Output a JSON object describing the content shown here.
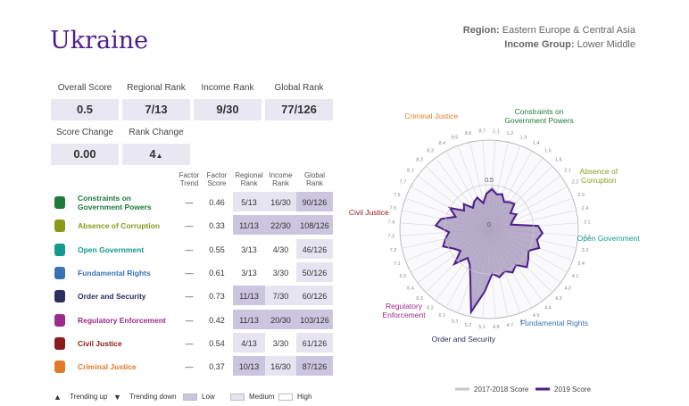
{
  "header": {
    "title": "Ukraine",
    "region_label": "Region:",
    "region": "Eastern Europe & Central Asia",
    "income_label": "Income Group:",
    "income": "Lower Middle"
  },
  "scores": [
    {
      "label": "Overall Score",
      "value": "0.5"
    },
    {
      "label": "Regional Rank",
      "value": "7/13"
    },
    {
      "label": "Income Rank",
      "value": "9/30"
    },
    {
      "label": "Global Rank",
      "value": "77/126"
    },
    {
      "label": "Score Change",
      "value": "0.00"
    },
    {
      "label": "Rank Change",
      "value": "4",
      "trend": "▲"
    }
  ],
  "table": {
    "columns": [
      "Factor Trend",
      "Factor Score",
      "Regional Rank",
      "Income Rank",
      "Global Rank"
    ],
    "rows": [
      {
        "name": "Constraints on Government Powers",
        "color": "#1e7b3a",
        "trend": "—",
        "score": "0.46",
        "ranks": [
          "5/13",
          "16/30",
          "90/126"
        ],
        "levels": [
          "medium",
          "medium",
          "low"
        ]
      },
      {
        "name": "Absence of Corruption",
        "color": "#8a9a1a",
        "trend": "—",
        "score": "0.33",
        "ranks": [
          "11/13",
          "22/30",
          "108/126"
        ],
        "levels": [
          "low",
          "low",
          "low"
        ]
      },
      {
        "name": "Open Government",
        "color": "#129a8c",
        "trend": "—",
        "score": "0.55",
        "ranks": [
          "3/13",
          "4/30",
          "46/126"
        ],
        "levels": [
          "high",
          "high",
          "medium"
        ]
      },
      {
        "name": "Fundamental Rights",
        "color": "#3a72b4",
        "trend": "—",
        "score": "0.61",
        "ranks": [
          "3/13",
          "3/30",
          "50/126"
        ],
        "levels": [
          "high",
          "high",
          "medium"
        ]
      },
      {
        "name": "Order and Security",
        "color": "#2c2f5e",
        "trend": "—",
        "score": "0.73",
        "ranks": [
          "11/13",
          "7/30",
          "60/126"
        ],
        "levels": [
          "low",
          "medium",
          "medium"
        ]
      },
      {
        "name": "Regulatory Enforcement",
        "color": "#9b2a8a",
        "trend": "—",
        "score": "0.42",
        "ranks": [
          "11/13",
          "20/30",
          "103/126"
        ],
        "levels": [
          "low",
          "low",
          "low"
        ]
      },
      {
        "name": "Civil Justice",
        "color": "#8b1a1a",
        "trend": "—",
        "score": "0.54",
        "ranks": [
          "4/13",
          "3/30",
          "61/126"
        ],
        "levels": [
          "medium",
          "high",
          "medium"
        ]
      },
      {
        "name": "Criminal Justice",
        "color": "#e07b2a",
        "trend": "—",
        "score": "0.37",
        "ranks": [
          "10/13",
          "16/30",
          "87/126"
        ],
        "levels": [
          "low",
          "medium",
          "low"
        ]
      }
    ]
  },
  "legend": {
    "up_symbol": "▲",
    "up": "Trending up",
    "down_symbol": "▼",
    "down": "Trending down",
    "low": "Low",
    "medium": "Medium",
    "high": "High"
  },
  "chart_data": {
    "type": "radar",
    "categories": [
      "1.1",
      "1.2",
      "1.3",
      "1.4",
      "1.5",
      "1.6",
      "2.1",
      "2.2",
      "2.3",
      "2.4",
      "3.1",
      "3.2",
      "3.3",
      "3.4",
      "4.1",
      "4.2",
      "4.3",
      "4.4",
      "4.5",
      "4.6",
      "4.7",
      "4.8",
      "5.1",
      "5.2",
      "5.3",
      "6.1",
      "6.2",
      "6.3",
      "6.4",
      "6.5",
      "7.1",
      "7.2",
      "7.3",
      "7.4",
      "7.5",
      "7.6",
      "7.7",
      "8.1",
      "8.2",
      "8.3",
      "8.4",
      "8.5",
      "8.6",
      "8.7"
    ],
    "rlim": [
      0,
      1
    ],
    "rticks": [
      0,
      0.5
    ],
    "series": [
      {
        "name": "2017-2018 Score",
        "color": "#c8c8cc",
        "values": [
          0.48,
          0.42,
          0.4,
          0.37,
          0.4,
          0.42,
          0.3,
          0.36,
          0.3,
          0.27,
          0.55,
          0.6,
          0.56,
          0.58,
          0.52,
          0.55,
          0.58,
          0.5,
          0.56,
          0.52,
          0.55,
          0.5,
          0.7,
          0.9,
          0.6,
          0.46,
          0.42,
          0.55,
          0.42,
          0.46,
          0.55,
          0.5,
          0.46,
          0.6,
          0.55,
          0.42,
          0.5,
          0.36,
          0.4,
          0.32,
          0.36,
          0.38,
          0.32,
          0.42
        ]
      },
      {
        "name": "2019 Score",
        "color": "#4b1f8c",
        "values": [
          0.45,
          0.4,
          0.42,
          0.35,
          0.38,
          0.4,
          0.3,
          0.35,
          0.28,
          0.25,
          0.55,
          0.6,
          0.55,
          0.6,
          0.5,
          0.55,
          0.6,
          0.5,
          0.55,
          0.5,
          0.55,
          0.5,
          0.7,
          0.95,
          0.6,
          0.45,
          0.4,
          0.55,
          0.4,
          0.45,
          0.55,
          0.5,
          0.45,
          0.6,
          0.55,
          0.4,
          0.5,
          0.35,
          0.4,
          0.3,
          0.35,
          0.38,
          0.3,
          0.4
        ]
      }
    ]
  }
}
